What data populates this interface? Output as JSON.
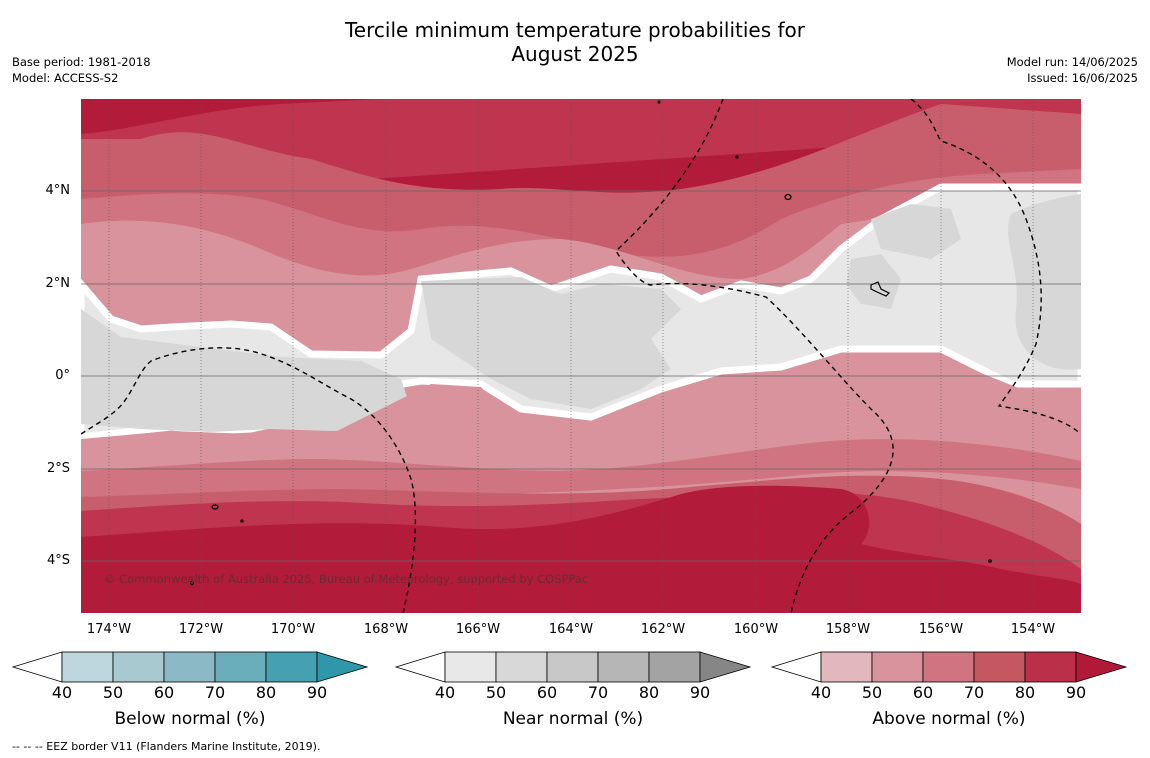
{
  "title_line1": "Tercile minimum temperature probabilities for",
  "title_line2": "August 2025",
  "meta_left": {
    "base_period": "Base period: 1981-2018",
    "model": "Model: ACCESS-S2"
  },
  "meta_right": {
    "model_run": "Model run: 14/06/2025",
    "issued": "Issued: 16/06/2025"
  },
  "map": {
    "latitude_labels": [
      "4°N",
      "2°N",
      "0°",
      "2°S",
      "4°S"
    ],
    "longitude_labels": [
      "174°W",
      "172°W",
      "170°W",
      "168°W",
      "166°W",
      "164°W",
      "162°W",
      "160°W",
      "158°W",
      "156°W",
      "154°W"
    ],
    "copyright": "© Commonwealth of Australia 2025, Bureau of Meteorology, supported by COSPPac",
    "colors": {
      "above_strong": "#b31b3a",
      "above_80": "#bf3550",
      "above_70": "#c85e6b",
      "above_60": "#cf7480",
      "above_50": "#d8939c",
      "above_40": "#e2b8bd",
      "near_50": "#e7e7e7",
      "near_60": "#d7d7d7",
      "boundary": "#ffffff"
    }
  },
  "colorbars": [
    {
      "title": "Below normal (%)",
      "ticks": [
        "40",
        "50",
        "60",
        "70",
        "80",
        "90"
      ],
      "colors": [
        "#ffffff",
        "#bed6dd",
        "#a8c9cf",
        "#8bb9c5",
        "#6aadbb",
        "#45a1b1",
        "#2e97a9"
      ]
    },
    {
      "title": "Near normal (%)",
      "ticks": [
        "40",
        "50",
        "60",
        "70",
        "80",
        "90"
      ],
      "colors": [
        "#ffffff",
        "#e8e8e8",
        "#d8d8d8",
        "#c8c8c8",
        "#b6b6b6",
        "#a3a3a3",
        "#868686"
      ]
    },
    {
      "title": "Above normal (%)",
      "ticks": [
        "40",
        "50",
        "60",
        "70",
        "80",
        "90"
      ],
      "colors": [
        "#ffffff",
        "#e2b8bd",
        "#d8939c",
        "#cf7480",
        "#c4575f",
        "#bb3049",
        "#b01a38"
      ]
    }
  ],
  "footnote": "--  --  -- EEZ border V11 (Flanders Marine Institute, 2019)."
}
